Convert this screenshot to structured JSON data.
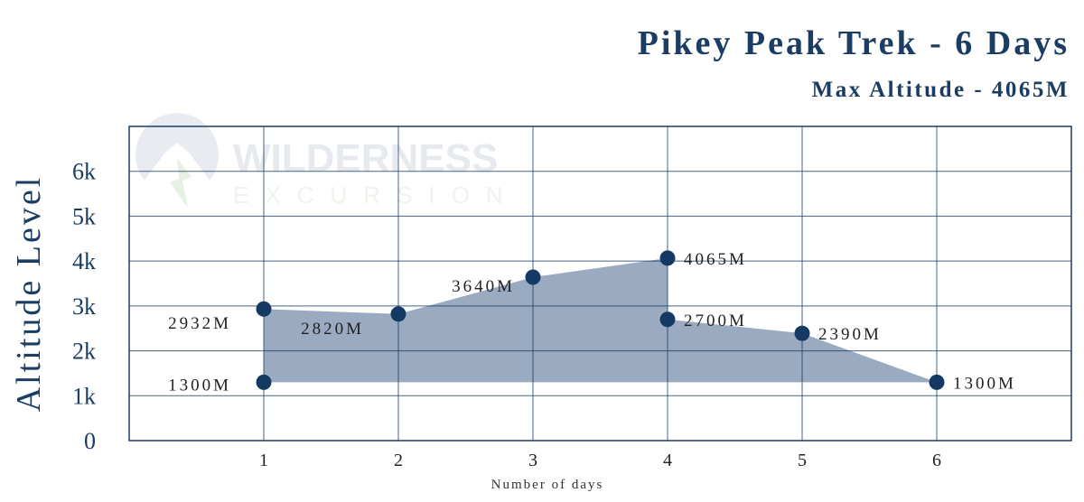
{
  "chart_data": {
    "type": "area",
    "title": "Pikey Peak Trek - 6 Days",
    "subtitle": "Max Altitude - 4065M",
    "xlabel": "Number of days",
    "ylabel": "Altitude Level",
    "xlim": [
      0,
      7
    ],
    "ylim": [
      0,
      7000
    ],
    "x_ticks": [
      1,
      2,
      3,
      4,
      5,
      6
    ],
    "y_ticks": [
      {
        "value": 0,
        "label": "0"
      },
      {
        "value": 1000,
        "label": "1k"
      },
      {
        "value": 2000,
        "label": "2k"
      },
      {
        "value": 3000,
        "label": "3k"
      },
      {
        "value": 4000,
        "label": "4k"
      },
      {
        "value": 5000,
        "label": "5k"
      },
      {
        "value": 6000,
        "label": "6k"
      }
    ],
    "grid": true,
    "baseline": 1300,
    "points": [
      {
        "x": 1,
        "y": 1300,
        "label": "1300M",
        "label_side": "left"
      },
      {
        "x": 1,
        "y": 2932,
        "label": "2932M",
        "label_side": "left-below"
      },
      {
        "x": 2,
        "y": 2820,
        "label": "2820M",
        "label_side": "left-below"
      },
      {
        "x": 3,
        "y": 3640,
        "label": "3640M",
        "label_side": "left"
      },
      {
        "x": 4,
        "y": 4065,
        "label": "4065M",
        "label_side": "right"
      },
      {
        "x": 4,
        "y": 2700,
        "label": "2700M",
        "label_side": "right"
      },
      {
        "x": 5,
        "y": 2390,
        "label": "2390M",
        "label_side": "right"
      },
      {
        "x": 6,
        "y": 1300,
        "label": "1300M",
        "label_side": "right"
      }
    ],
    "colors": {
      "line": "#1b3d63",
      "fill": "#9aabc1",
      "point": "#143a63"
    }
  },
  "watermark": {
    "line1": "WILDERNESS",
    "line2": "EXCURSION"
  }
}
